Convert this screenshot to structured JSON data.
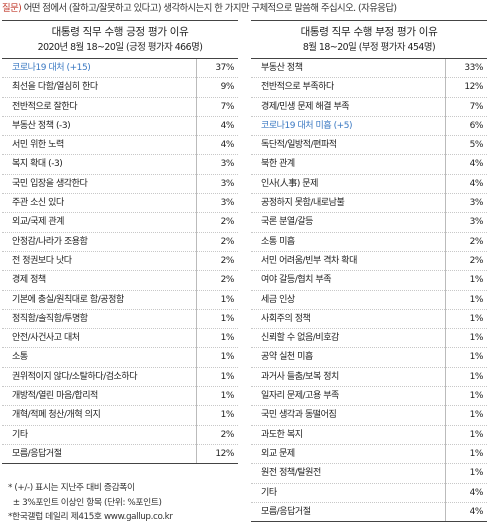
{
  "question": {
    "label": "질문)",
    "text": " 어떤 점에서 (잘하고/잘못하고 있다고) 생각하시는지 한 가지만 구체적으로 말씀해 주십시오. (자유응답)"
  },
  "left_table": {
    "title": "대통령 직무 수행 긍정 평가 이유",
    "subtitle": "2020년 8월 18~20일 (긍정 평가자 466명)",
    "rows": [
      {
        "label": "코로나19 대처 (+15)",
        "pct": "37%",
        "highlight": true
      },
      {
        "label": "최선을 다함/열심히 한다",
        "pct": "9%"
      },
      {
        "label": "전반적으로 잘한다",
        "pct": "7%"
      },
      {
        "label": "부동산 정책 (-3)",
        "pct": "4%"
      },
      {
        "label": "서민 위한 노력",
        "pct": "4%"
      },
      {
        "label": "복지 확대 (-3)",
        "pct": "3%"
      },
      {
        "label": "국민 입장을 생각한다",
        "pct": "3%"
      },
      {
        "label": "주관 소신 있다",
        "pct": "3%"
      },
      {
        "label": "외교/국제 관계",
        "pct": "2%"
      },
      {
        "label": "안정감/나라가 조용함",
        "pct": "2%"
      },
      {
        "label": "전 정권보다 낫다",
        "pct": "2%"
      },
      {
        "label": "경제 정책",
        "pct": "2%"
      },
      {
        "label": "기본에 충실/원칙대로 함/공정함",
        "pct": "1%"
      },
      {
        "label": "정직함/솔직함/투명함",
        "pct": "1%"
      },
      {
        "label": "안전/사건사고 대처",
        "pct": "1%"
      },
      {
        "label": "소통",
        "pct": "1%"
      },
      {
        "label": "권위적이지 않다/소탈하다/검소하다",
        "pct": "1%"
      },
      {
        "label": "개방적/열린 마음/합리적",
        "pct": "1%"
      },
      {
        "label": "개혁/적폐 청산/개혁 의지",
        "pct": "1%"
      },
      {
        "label": "기타",
        "pct": "2%"
      },
      {
        "label": "모름/응답거절",
        "pct": "12%"
      }
    ]
  },
  "right_table": {
    "title": "대통령 직무 수행 부정 평가 이유",
    "subtitle": "8월 18~20일 (부정 평가자 454명)",
    "rows": [
      {
        "label": "부동산 정책",
        "pct": "33%"
      },
      {
        "label": "전반적으로 부족하다",
        "pct": "12%"
      },
      {
        "label": "경제/민생 문제 해결 부족",
        "pct": "7%"
      },
      {
        "label": "코로나19 대처 미흡 (+5)",
        "pct": "6%",
        "highlight": true
      },
      {
        "label": "독단적/일방적/편파적",
        "pct": "5%"
      },
      {
        "label": "북한 관계",
        "pct": "4%"
      },
      {
        "label": "인사(人事) 문제",
        "pct": "4%"
      },
      {
        "label": "공정하지 못함/내로남불",
        "pct": "3%"
      },
      {
        "label": "국론 분열/갈등",
        "pct": "3%"
      },
      {
        "label": "소통 미흡",
        "pct": "2%"
      },
      {
        "label": "서민 어려움/빈부 격차 확대",
        "pct": "2%"
      },
      {
        "label": "여야 갈등/협치 부족",
        "pct": "1%"
      },
      {
        "label": "세금 인상",
        "pct": "1%"
      },
      {
        "label": "사회주의 정책",
        "pct": "1%"
      },
      {
        "label": "신뢰할 수 없음/비호감",
        "pct": "1%"
      },
      {
        "label": "공약 실천 미흡",
        "pct": "1%"
      },
      {
        "label": "과거사 들춤/보복 정치",
        "pct": "1%"
      },
      {
        "label": "일자리 문제/고용 부족",
        "pct": "1%"
      },
      {
        "label": "국민 생각과 동떨어짐",
        "pct": "1%"
      },
      {
        "label": "과도한 복지",
        "pct": "1%"
      },
      {
        "label": "외교 문제",
        "pct": "1%"
      },
      {
        "label": "원전 정책/탈원전",
        "pct": "1%"
      },
      {
        "label": "기타",
        "pct": "4%"
      },
      {
        "label": "모름/응답거절",
        "pct": "4%"
      }
    ]
  },
  "notes": [
    "* (+/-) 표시는 지난주 대비 증감폭이",
    "  ± 3%포인트 이상인 항목 (단위: %포인트)",
    "*한국갤럽 데일리 제415호 www.gallup.co.kr"
  ],
  "colors": {
    "highlight": "#3a78c2",
    "question_label": "#c0392b"
  }
}
